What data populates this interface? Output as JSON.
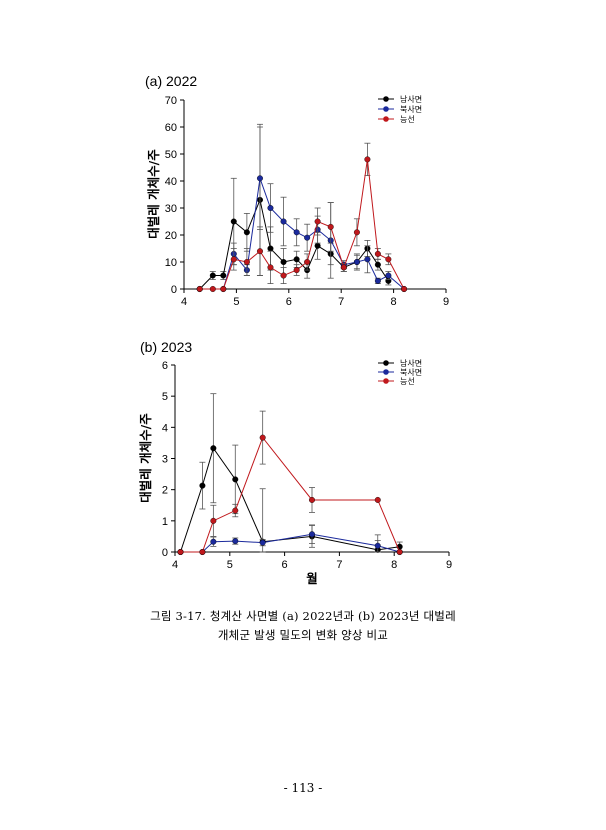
{
  "chart_data": [
    {
      "type": "line",
      "panel_label": "(a) 2022",
      "ylabel": "대벌레 개체수/주",
      "xlabel": "",
      "xlim": [
        4,
        9
      ],
      "ylim": [
        0,
        70
      ],
      "xticks": [
        4,
        5,
        6,
        7,
        8,
        9
      ],
      "yticks": [
        0,
        10,
        20,
        30,
        40,
        50,
        60,
        70
      ],
      "legend_position": "top-right",
      "series": [
        {
          "name": "남사면",
          "color": "#000000",
          "x": [
            4.3,
            4.55,
            4.75,
            4.95,
            5.2,
            5.45,
            5.65,
            5.9,
            6.15,
            6.35,
            6.55,
            6.8,
            7.05,
            7.3,
            7.5,
            7.7,
            7.9
          ],
          "y": [
            0,
            5,
            5,
            25,
            21,
            33,
            15,
            10,
            11,
            7,
            16,
            13,
            8,
            10,
            15,
            9,
            3
          ],
          "err": [
            0,
            1.5,
            1.5,
            16,
            7,
            28,
            8,
            5,
            3,
            3,
            5,
            4,
            1.5,
            2.5,
            3,
            2,
            1.5
          ]
        },
        {
          "name": "북사면",
          "color": "#1b2a9c",
          "x": [
            4.3,
            4.75,
            4.95,
            5.2,
            5.45,
            5.65,
            5.9,
            6.15,
            6.35,
            6.55,
            6.8,
            7.05,
            7.3,
            7.5,
            7.7,
            7.9,
            8.2
          ],
          "y": [
            0,
            0,
            13,
            7,
            41,
            30,
            25,
            21,
            19,
            22,
            18,
            9,
            10,
            11,
            3,
            5,
            0
          ],
          "err": [
            0,
            0,
            4,
            2,
            19,
            9,
            9,
            5,
            5,
            5,
            14,
            1.5,
            3,
            5,
            1,
            1.5,
            0
          ]
        },
        {
          "name": "능선",
          "color": "#c0181c",
          "x": [
            4.3,
            4.55,
            4.75,
            4.95,
            5.2,
            5.45,
            5.65,
            5.9,
            6.15,
            6.35,
            6.55,
            6.8,
            7.05,
            7.3,
            7.5,
            7.7,
            7.9,
            8.2
          ],
          "y": [
            0,
            0,
            0,
            11,
            10,
            14,
            8,
            5,
            7,
            10,
            25,
            23,
            8,
            21,
            48,
            13,
            11,
            0
          ],
          "err": [
            0,
            0,
            0,
            4,
            5,
            9,
            6,
            3,
            2,
            3,
            5,
            9,
            1.5,
            5,
            6,
            2,
            2,
            0
          ]
        }
      ]
    },
    {
      "type": "line",
      "panel_label": "(b) 2023",
      "ylabel": "대벌레 개체수/주",
      "xlabel": "월",
      "xlim": [
        4,
        9
      ],
      "ylim": [
        0,
        6
      ],
      "xticks": [
        4,
        5,
        6,
        7,
        8,
        9
      ],
      "yticks": [
        0,
        1,
        2,
        3,
        4,
        5,
        6
      ],
      "legend_position": "top-right",
      "series": [
        {
          "name": "남사면",
          "color": "#000000",
          "x": [
            4.1,
            4.5,
            4.7,
            5.1,
            5.6,
            6.5,
            7.7,
            8.1
          ],
          "y": [
            0,
            2.13,
            3.33,
            2.33,
            0.33,
            0.5,
            0.07,
            0.17
          ],
          "err": [
            0,
            0.75,
            1.75,
            1.1,
            1.7,
            0.35,
            0.3,
            0.15
          ]
        },
        {
          "name": "북사면",
          "color": "#1b2a9c",
          "x": [
            4.1,
            4.5,
            4.7,
            5.1,
            5.6,
            6.5,
            7.7,
            8.1
          ],
          "y": [
            0,
            0,
            0.33,
            0.35,
            0.3,
            0.57,
            0.2,
            0
          ],
          "err": [
            0,
            0,
            0.15,
            0.1,
            0.1,
            0.3,
            0.35,
            0
          ]
        },
        {
          "name": "능선",
          "color": "#c0181c",
          "x": [
            4.1,
            4.5,
            4.7,
            5.1,
            5.6,
            6.5,
            7.7,
            8.1
          ],
          "y": [
            0,
            0,
            1.0,
            1.33,
            3.67,
            1.67,
            1.67,
            0
          ],
          "err": [
            0,
            0,
            0.5,
            0.2,
            0.85,
            0.4,
            0,
            0
          ]
        }
      ]
    }
  ],
  "caption": {
    "line1": "그림 3-17. 청계산 사면별 (a) 2022년과 (b) 2023년 대벌레",
    "line2": "개체군 발생 밀도의 변화 양상 비교"
  },
  "page_number": "- 113 -"
}
